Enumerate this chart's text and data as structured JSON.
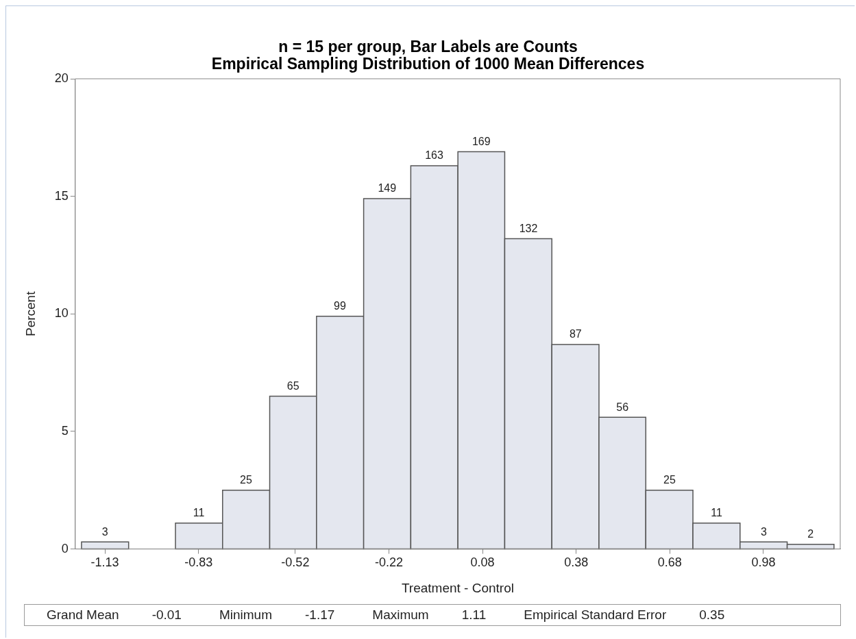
{
  "chart_data": {
    "type": "histogram",
    "title": "n = 15 per group, Bar Labels are Counts",
    "subtitle": "Empirical Sampling Distribution of 1000 Mean Differences",
    "xlabel": "Treatment - Control",
    "ylabel": "Percent",
    "bins": [
      -1.205,
      -1.054,
      -0.904,
      -0.753,
      -0.602,
      -0.452,
      -0.301,
      -0.15,
      0.001,
      0.151,
      0.302,
      0.453,
      0.603,
      0.754,
      0.905,
      1.056,
      1.206
    ],
    "values": [
      0.3,
      0,
      1.1,
      2.5,
      6.5,
      9.9,
      14.9,
      16.3,
      16.9,
      13.2,
      8.7,
      5.6,
      2.5,
      1.1,
      0.3,
      0.2
    ],
    "color": "#e4e7ef",
    "xlim": [
      -1.225,
      1.226
    ],
    "xticks": [
      -1.13,
      -0.83,
      -0.52,
      -0.22,
      0.08,
      0.38,
      0.68,
      0.98
    ],
    "ylim": [
      0,
      20
    ],
    "yticks": [
      0,
      5,
      10,
      15,
      20
    ],
    "annotations": [
      {
        "text": "3",
        "x": -1.13,
        "y": 0.3
      },
      {
        "text": "11",
        "x": -0.829,
        "y": 1.1
      },
      {
        "text": "25",
        "x": -0.678,
        "y": 2.5
      },
      {
        "text": "65",
        "x": -0.527,
        "y": 6.5
      },
      {
        "text": "99",
        "x": -0.377,
        "y": 9.9
      },
      {
        "text": "149",
        "x": -0.226,
        "y": 14.9
      },
      {
        "text": "163",
        "x": -0.075,
        "y": 16.3
      },
      {
        "text": "169",
        "x": 0.076,
        "y": 16.9
      },
      {
        "text": "132",
        "x": 0.227,
        "y": 13.2
      },
      {
        "text": "87",
        "x": 0.378,
        "y": 8.7
      },
      {
        "text": "56",
        "x": 0.528,
        "y": 5.6
      },
      {
        "text": "25",
        "x": 0.679,
        "y": 2.5
      },
      {
        "text": "11",
        "x": 0.83,
        "y": 1.1
      },
      {
        "text": "3",
        "x": 0.981,
        "y": 0.3
      },
      {
        "text": "2",
        "x": 1.131,
        "y": 0.2
      },
      "Grand Mean",
      "-0.01",
      "Minimum",
      "-1.17",
      "Maximum",
      "1.11",
      "Empirical Standard Error",
      "0.35"
    ]
  }
}
